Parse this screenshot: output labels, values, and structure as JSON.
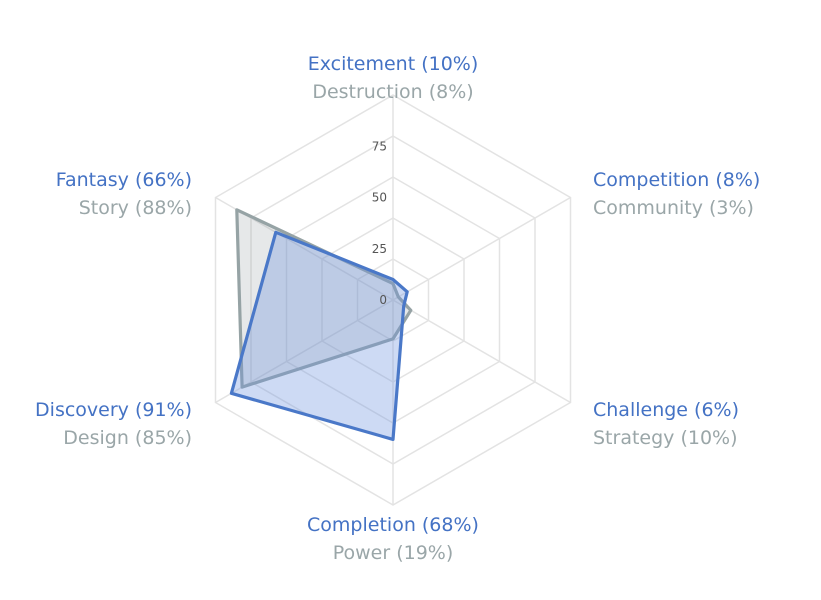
{
  "chart_data": {
    "type": "radar",
    "axes": [
      {
        "primary": "Excitement (10%)",
        "secondary": "Destruction (8%)"
      },
      {
        "primary": "Competition (8%)",
        "secondary": "Community (3%)"
      },
      {
        "primary": "Challenge (6%)",
        "secondary": "Strategy (10%)"
      },
      {
        "primary": "Completion (68%)",
        "secondary": "Power (19%)"
      },
      {
        "primary": "Discovery (91%)",
        "secondary": "Design (85%)"
      },
      {
        "primary": "Fantasy (66%)",
        "secondary": "Story (88%)"
      }
    ],
    "series": [
      {
        "values": [
          8,
          3,
          10,
          19,
          85,
          88
        ],
        "stroke": "#96a3a5",
        "fill": "#8f979b",
        "fill_opacity": 0.22
      },
      {
        "values": [
          10,
          8,
          6,
          68,
          91,
          66
        ],
        "stroke": "#4a78c8",
        "fill": "#6f94e0",
        "fill_opacity": 0.35
      }
    ],
    "ticks": [
      "0",
      "25",
      "50",
      "75"
    ],
    "tick_values": [
      0,
      25,
      50,
      75
    ],
    "rmax": 100,
    "rmin": 0,
    "grid": true,
    "grid_levels": [
      20,
      40,
      60,
      80,
      100
    ],
    "colors": {
      "grid": "#e3e3e3",
      "primary_label": "#4472c4",
      "secondary_label": "#9aa6a8",
      "tick_label": "#555555"
    }
  }
}
